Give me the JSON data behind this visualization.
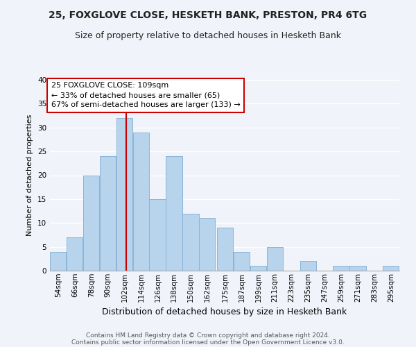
{
  "title": "25, FOXGLOVE CLOSE, HESKETH BANK, PRESTON, PR4 6TG",
  "subtitle": "Size of property relative to detached houses in Hesketh Bank",
  "xlabel": "Distribution of detached houses by size in Hesketh Bank",
  "ylabel": "Number of detached properties",
  "bin_labels": [
    "54sqm",
    "66sqm",
    "78sqm",
    "90sqm",
    "102sqm",
    "114sqm",
    "126sqm",
    "138sqm",
    "150sqm",
    "162sqm",
    "175sqm",
    "187sqm",
    "199sqm",
    "211sqm",
    "223sqm",
    "235sqm",
    "247sqm",
    "259sqm",
    "271sqm",
    "283sqm",
    "295sqm"
  ],
  "bin_edges": [
    54,
    66,
    78,
    90,
    102,
    114,
    126,
    138,
    150,
    162,
    175,
    187,
    199,
    211,
    223,
    235,
    247,
    259,
    271,
    283,
    295
  ],
  "counts": [
    4,
    7,
    20,
    24,
    32,
    29,
    15,
    24,
    12,
    11,
    9,
    4,
    1,
    5,
    0,
    2,
    0,
    1,
    1,
    0,
    1
  ],
  "bar_color": "#b8d4ec",
  "bar_edge_color": "#8ab4d8",
  "property_size": 109,
  "vline_color": "#cc0000",
  "annotation_line1": "25 FOXGLOVE CLOSE: 109sqm",
  "annotation_line2": "← 33% of detached houses are smaller (65)",
  "annotation_line3": "67% of semi-detached houses are larger (133) →",
  "annotation_box_color": "#ffffff",
  "annotation_box_edge_color": "#cc0000",
  "ylim": [
    0,
    40
  ],
  "yticks": [
    0,
    5,
    10,
    15,
    20,
    25,
    30,
    35,
    40
  ],
  "footer_line1": "Contains HM Land Registry data © Crown copyright and database right 2024.",
  "footer_line2": "Contains public sector information licensed under the Open Government Licence v3.0.",
  "bg_color": "#f0f4fa",
  "grid_color": "#ffffff",
  "title_fontsize": 10,
  "subtitle_fontsize": 9,
  "xlabel_fontsize": 9,
  "ylabel_fontsize": 8,
  "tick_fontsize": 7.5,
  "annotation_fontsize": 8,
  "footer_fontsize": 6.5
}
